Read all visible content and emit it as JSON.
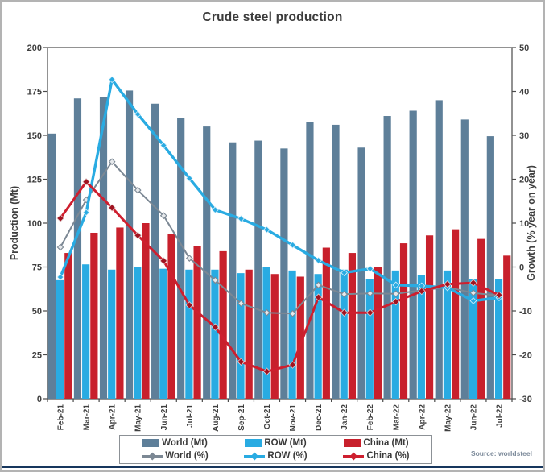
{
  "title": "Crude steel production",
  "source": "Source: worldsteel",
  "colors": {
    "world_bar": "#5E7F99",
    "row_bar": "#29ABE2",
    "china_bar": "#C8202C",
    "world_line": "#7C8894",
    "row_line": "#29ABE2",
    "china_line": "#CE1F2F",
    "axis_text": "#3F3F3F",
    "frame": "#4a4a4a",
    "bottom_rule": "#17365D"
  },
  "legend": {
    "position": "bottom",
    "items": [
      {
        "label": "World (Mt)",
        "swatch": "bar-world"
      },
      {
        "label": "ROW (Mt)",
        "swatch": "bar-row"
      },
      {
        "label": "China (Mt)",
        "swatch": "bar-china"
      },
      {
        "label": "World (%)",
        "swatch": "line-world"
      },
      {
        "label": "ROW (%)",
        "swatch": "line-row"
      },
      {
        "label": "China (%)",
        "swatch": "line-china"
      }
    ]
  },
  "chart_data": {
    "type": "combo_bar_line",
    "title": "Crude steel production",
    "categories": [
      "Feb-21",
      "Mar-21",
      "Apr-21",
      "May-21",
      "Jun-21",
      "Jul-21",
      "Aug-21",
      "Sep-21",
      "Oct-21",
      "Nov-21",
      "Dec-21",
      "Jan-22",
      "Feb-22",
      "Mar-22",
      "Apr-22",
      "May-22",
      "Jun-22",
      "Jul-22"
    ],
    "left_axis": {
      "label": "Production (Mt)",
      "min": 0,
      "max": 200,
      "step": 25
    },
    "right_axis": {
      "label": "Growth (% year on year)",
      "min": -30,
      "max": 50,
      "step": 10
    },
    "bar_series": [
      {
        "name": "World (Mt)",
        "color_key": "world_bar",
        "values": [
          151,
          171,
          172,
          175.5,
          168,
          160,
          155,
          146,
          147,
          142.5,
          157.5,
          156,
          143,
          161,
          164,
          170,
          159,
          149.5
        ]
      },
      {
        "name": "ROW (Mt)",
        "color_key": "row_bar",
        "values": [
          67.5,
          76.5,
          73.5,
          75,
          74,
          73.5,
          73.5,
          71.5,
          75,
          73,
          71,
          73.5,
          68,
          73,
          70.5,
          73,
          68,
          68
        ]
      },
      {
        "name": "China (Mt)",
        "color_key": "china_bar",
        "values": [
          83,
          94.5,
          97.5,
          100,
          94,
          87,
          84,
          73.5,
          71,
          69.5,
          86,
          83,
          75,
          88.5,
          93,
          96.5,
          91,
          81.5
        ]
      }
    ],
    "line_series": [
      {
        "name": "World (%)",
        "color_key": "world_line",
        "marker": "open-diamond",
        "values": [
          4.5,
          15.3,
          24,
          17.5,
          11.7,
          2,
          -3,
          -8.3,
          -10.4,
          -10.6,
          -4.1,
          -6.2,
          -6,
          -6.1,
          -5.3,
          -4.6,
          -5.9,
          -6.5
        ]
      },
      {
        "name": "ROW (%)",
        "color_key": "row_line",
        "marker": "diamond",
        "values": [
          -2.3,
          12.4,
          42.7,
          34.8,
          27.7,
          20.2,
          13,
          11,
          8.5,
          5,
          1.5,
          -1.3,
          -0.4,
          -4.1,
          -4.3,
          -4.7,
          -7.7,
          -7
        ]
      },
      {
        "name": "China (%)",
        "color_key": "china_line",
        "marker": "diamond",
        "values": [
          11.1,
          19.4,
          13.5,
          7.2,
          1.4,
          -8.7,
          -13.7,
          -21.6,
          -23.8,
          -22.3,
          -6.9,
          -10.4,
          -10.4,
          -7.9,
          -5.5,
          -3.9,
          -3.6,
          -6.4
        ]
      }
    ],
    "grid": "off"
  }
}
